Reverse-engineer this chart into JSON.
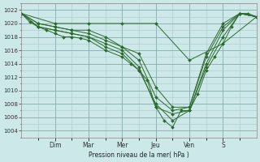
{
  "background_color": "#cce8e8",
  "grid_color": "#aac8c8",
  "line_color": "#2d6a2d",
  "marker_color": "#2d6a2d",
  "xlabel": "Pression niveau de la mer( hPa )",
  "ylim": [
    1003,
    1023
  ],
  "yticks": [
    1004,
    1006,
    1008,
    1010,
    1012,
    1014,
    1016,
    1018,
    1020,
    1022
  ],
  "xlim": [
    0,
    7
  ],
  "day_labels": [
    "Dim",
    "Mar",
    "Mer",
    "Jeu",
    "Ven",
    "S"
  ],
  "day_positions": [
    1,
    2,
    3,
    4,
    5,
    6
  ],
  "series": [
    {
      "x": [
        0,
        0.25,
        0.5,
        0.75,
        1.0,
        1.25,
        1.5,
        1.75,
        2.0,
        2.5,
        3.0,
        3.25,
        3.5,
        3.75,
        4.0,
        4.25,
        4.5,
        4.75,
        5.0,
        5.25,
        5.5,
        5.75,
        6.0,
        6.25,
        6.5,
        6.75,
        7.0
      ],
      "y": [
        1021.5,
        1020.2,
        1019.5,
        1019.0,
        1018.5,
        1018.0,
        1018.0,
        1017.8,
        1017.5,
        1016.0,
        1015.0,
        1014.0,
        1013.0,
        1011.5,
        1007.5,
        1005.5,
        1004.5,
        1007.0,
        1007.0,
        1009.5,
        1013.0,
        1015.0,
        1017.0,
        1019.5,
        1021.5,
        1021.5,
        1021.0
      ]
    },
    {
      "x": [
        0,
        0.5,
        1.0,
        1.5,
        2.0,
        2.5,
        3.0,
        3.5,
        4.0,
        4.5,
        5.0,
        5.5,
        6.0,
        6.5,
        7.0
      ],
      "y": [
        1021.5,
        1019.5,
        1019.0,
        1018.5,
        1018.0,
        1016.5,
        1015.5,
        1013.0,
        1008.0,
        1005.5,
        1007.0,
        1013.5,
        1018.0,
        1021.5,
        1021.0
      ]
    },
    {
      "x": [
        0,
        0.5,
        1.0,
        1.5,
        2.0,
        2.5,
        3.0,
        3.5,
        4.0,
        4.5,
        5.0,
        5.5,
        6.0,
        6.5,
        7.0
      ],
      "y": [
        1021.5,
        1019.5,
        1019.0,
        1018.5,
        1018.0,
        1017.0,
        1016.0,
        1013.5,
        1007.5,
        1006.5,
        1007.0,
        1014.0,
        1019.0,
        1021.5,
        1021.0
      ]
    },
    {
      "x": [
        0,
        0.5,
        1.0,
        1.5,
        2.0,
        2.5,
        3.0,
        3.5,
        4.0,
        4.5,
        5.0,
        5.5,
        6.0,
        6.5,
        7.0
      ],
      "y": [
        1021.5,
        1020.0,
        1019.5,
        1019.0,
        1018.5,
        1017.5,
        1016.5,
        1014.5,
        1009.0,
        1007.0,
        1007.5,
        1015.0,
        1019.5,
        1021.5,
        1021.0
      ]
    },
    {
      "x": [
        0,
        0.5,
        1.0,
        1.5,
        2.0,
        2.5,
        3.0,
        3.5,
        4.0,
        4.5,
        5.0,
        5.5,
        6.0,
        6.5,
        7.0
      ],
      "y": [
        1021.5,
        1020.0,
        1019.5,
        1019.0,
        1019.0,
        1018.0,
        1016.5,
        1015.5,
        1010.5,
        1007.5,
        1007.5,
        1015.5,
        1020.0,
        1021.5,
        1021.0
      ]
    },
    {
      "x": [
        0,
        1.0,
        2.0,
        3.0,
        4.0,
        5.0,
        6.0,
        7.0
      ],
      "y": [
        1021.5,
        1020.0,
        1020.0,
        1020.0,
        1020.0,
        1014.5,
        1017.0,
        1021.0
      ]
    }
  ],
  "top_line": {
    "x": [
      0,
      1.0,
      2.0,
      3.0,
      4.0,
      5.0,
      6.0,
      7.0
    ],
    "y": [
      1021.5,
      1020.0,
      1020.0,
      1020.0,
      1020.0,
      1014.5,
      1017.0,
      1021.0
    ]
  }
}
